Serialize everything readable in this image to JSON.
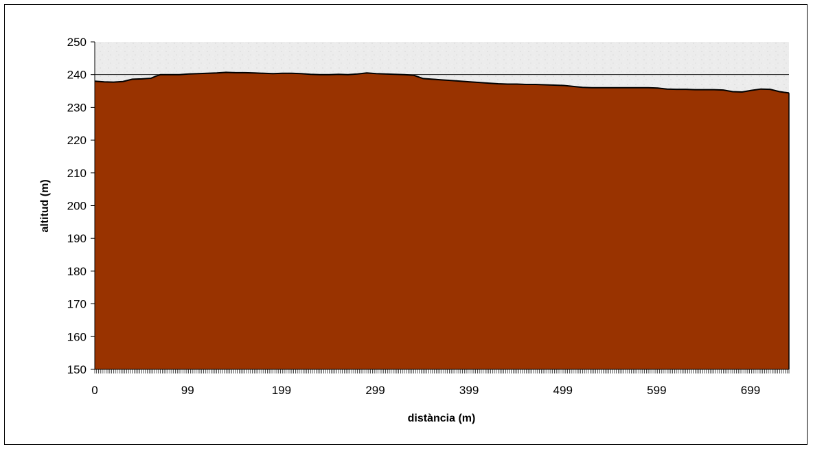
{
  "chart_data": {
    "type": "area",
    "title": "",
    "xlabel": "distància (m)",
    "ylabel": "altitud (m)",
    "xlim": [
      0,
      740
    ],
    "ylim": [
      150,
      250
    ],
    "y_ticks": [
      150,
      160,
      170,
      180,
      190,
      200,
      210,
      220,
      230,
      240,
      250
    ],
    "x_tick_labels": [
      "0",
      "99",
      "199",
      "299",
      "399",
      "499",
      "599",
      "699"
    ],
    "grid": "horizontal line at 240 only",
    "legend": "none",
    "colors": {
      "fill": "#993300",
      "outline": "#000000",
      "sky": "#ececec",
      "frame": "#000000"
    },
    "series": [
      {
        "x": [
          0,
          10,
          20,
          30,
          40,
          50,
          60,
          65,
          70,
          80,
          90,
          100,
          110,
          120,
          130,
          140,
          150,
          160,
          170,
          180,
          190,
          200,
          210,
          220,
          230,
          240,
          250,
          260,
          270,
          280,
          290,
          300,
          310,
          320,
          330,
          340,
          350,
          360,
          370,
          380,
          390,
          400,
          410,
          420,
          430,
          440,
          450,
          460,
          470,
          480,
          490,
          500,
          510,
          520,
          530,
          540,
          550,
          560,
          570,
          580,
          590,
          600,
          610,
          620,
          630,
          640,
          650,
          660,
          670,
          680,
          690,
          700,
          710,
          720,
          730,
          740
        ],
        "y": [
          238,
          237.8,
          237.7,
          237.9,
          238.6,
          238.7,
          238.9,
          239.5,
          240,
          240,
          240,
          240.2,
          240.3,
          240.4,
          240.5,
          240.7,
          240.6,
          240.6,
          240.5,
          240.4,
          240.3,
          240.4,
          240.4,
          240.3,
          240.1,
          240,
          240,
          240.1,
          240,
          240.2,
          240.5,
          240.3,
          240.2,
          240.1,
          240,
          239.8,
          238.8,
          238.6,
          238.4,
          238.2,
          238,
          237.8,
          237.6,
          237.4,
          237.2,
          237.1,
          237.1,
          237,
          237,
          236.9,
          236.8,
          236.7,
          236.4,
          236.1,
          236,
          236,
          236,
          236,
          236,
          236,
          236,
          235.9,
          235.6,
          235.5,
          235.5,
          235.4,
          235.4,
          235.4,
          235.3,
          234.8,
          234.7,
          235.2,
          235.6,
          235.5,
          234.8,
          234.4
        ]
      }
    ]
  }
}
